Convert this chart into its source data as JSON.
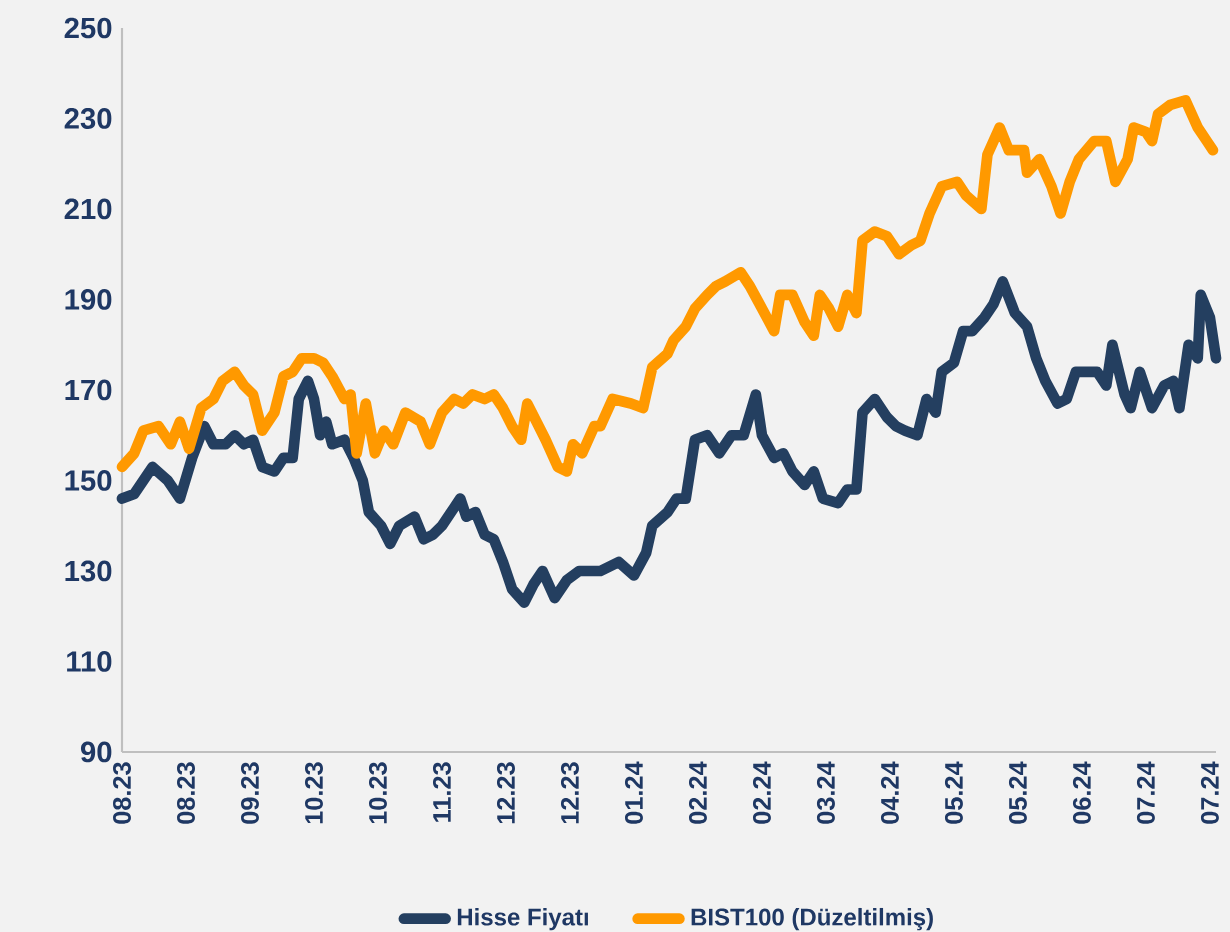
{
  "chart_data": {
    "type": "line",
    "legend": "bottom",
    "xlim": [
      "2023-08-02",
      "2024-07-26"
    ],
    "ylim": [
      90,
      250
    ],
    "yticks": [
      90,
      110,
      130,
      150,
      170,
      190,
      210,
      230,
      250
    ],
    "xticks": [
      {
        "value": "2023-08-02",
        "label": "08.23"
      },
      {
        "value": "2023-08-23",
        "label": "08.23"
      },
      {
        "value": "2023-09-13",
        "label": "09.23"
      },
      {
        "value": "2023-10-04",
        "label": "10.23"
      },
      {
        "value": "2023-10-25",
        "label": "10.23"
      },
      {
        "value": "2023-11-15",
        "label": "11.23"
      },
      {
        "value": "2023-12-06",
        "label": "12.23"
      },
      {
        "value": "2023-12-27",
        "label": "12.23"
      },
      {
        "value": "2024-01-17",
        "label": "01.24"
      },
      {
        "value": "2024-02-07",
        "label": "02.24"
      },
      {
        "value": "2024-02-28",
        "label": "02.24"
      },
      {
        "value": "2024-03-20",
        "label": "03.24"
      },
      {
        "value": "2024-04-10",
        "label": "04.24"
      },
      {
        "value": "2024-05-01",
        "label": "05.24"
      },
      {
        "value": "2024-05-22",
        "label": "05.24"
      },
      {
        "value": "2024-06-12",
        "label": "06.24"
      },
      {
        "value": "2024-07-03",
        "label": "07.24"
      },
      {
        "value": "2024-07-24",
        "label": "07.24"
      }
    ],
    "series": [
      {
        "name": "Hisse Fiyatı",
        "color": "#243f60",
        "x": [
          "2023-08-02",
          "2023-08-06",
          "2023-08-09",
          "2023-08-12",
          "2023-08-17",
          "2023-08-21",
          "2023-08-25",
          "2023-08-29",
          "2023-09-01",
          "2023-09-05",
          "2023-09-08",
          "2023-09-11",
          "2023-09-14",
          "2023-09-17",
          "2023-09-21",
          "2023-09-24",
          "2023-09-27",
          "2023-09-29",
          "2023-10-02",
          "2023-10-04",
          "2023-10-06",
          "2023-10-08",
          "2023-10-10",
          "2023-10-14",
          "2023-10-17",
          "2023-10-20",
          "2023-10-22",
          "2023-10-26",
          "2023-10-29",
          "2023-11-01",
          "2023-11-06",
          "2023-11-09",
          "2023-11-12",
          "2023-11-15",
          "2023-11-19",
          "2023-11-21",
          "2023-11-23",
          "2023-11-26",
          "2023-11-29",
          "2023-12-02",
          "2023-12-05",
          "2023-12-08",
          "2023-12-12",
          "2023-12-15",
          "2023-12-18",
          "2023-12-22",
          "2023-12-26",
          "2023-12-30",
          "2024-01-03",
          "2024-01-06",
          "2024-01-12",
          "2024-01-17",
          "2024-01-21",
          "2024-01-23",
          "2024-01-28",
          "2024-01-31",
          "2024-02-03",
          "2024-02-06",
          "2024-02-10",
          "2024-02-14",
          "2024-02-18",
          "2024-02-22",
          "2024-02-26",
          "2024-02-28",
          "2024-03-03",
          "2024-03-06",
          "2024-03-09",
          "2024-03-13",
          "2024-03-16",
          "2024-03-19",
          "2024-03-24",
          "2024-03-27",
          "2024-03-30",
          "2024-04-01",
          "2024-04-05",
          "2024-04-09",
          "2024-04-12",
          "2024-04-15",
          "2024-04-19",
          "2024-04-22",
          "2024-04-25",
          "2024-04-27",
          "2024-05-01",
          "2024-05-04",
          "2024-05-07",
          "2024-05-11",
          "2024-05-14",
          "2024-05-17",
          "2024-05-21",
          "2024-05-25",
          "2024-05-28",
          "2024-05-31",
          "2024-06-04",
          "2024-06-07",
          "2024-06-10",
          "2024-06-17",
          "2024-06-20",
          "2024-06-22",
          "2024-06-26",
          "2024-06-28",
          "2024-07-01",
          "2024-07-05",
          "2024-07-09",
          "2024-07-12",
          "2024-07-14",
          "2024-07-17",
          "2024-07-20",
          "2024-07-21",
          "2024-07-24",
          "2024-07-26"
        ],
        "values": [
          146,
          147,
          150,
          153,
          150,
          146,
          155,
          162,
          158,
          158,
          160,
          158,
          159,
          153,
          152,
          155,
          155,
          168,
          172,
          168,
          160,
          163,
          158,
          159,
          155,
          150,
          143,
          140,
          136,
          140,
          142,
          137,
          138,
          140,
          144,
          146,
          142,
          143,
          138,
          137,
          132,
          126,
          123,
          127,
          130,
          124,
          128,
          130,
          130,
          130,
          132,
          129,
          134,
          140,
          143,
          146,
          146,
          159,
          160,
          156,
          160,
          160,
          169,
          160,
          155,
          156,
          152,
          149,
          152,
          146,
          145,
          148,
          148,
          165,
          168,
          164,
          162,
          161,
          160,
          168,
          165,
          174,
          176,
          183,
          183,
          186,
          189,
          194,
          187,
          184,
          177,
          172,
          167,
          168,
          174,
          174,
          171,
          180,
          169,
          166,
          174,
          166,
          171,
          172,
          166,
          180,
          177,
          191,
          186,
          177
        ]
      },
      {
        "name": "BIST100 (Düzeltilmiş)",
        "color": "#ff9900",
        "x": [
          "2023-08-02",
          "2023-08-06",
          "2023-08-09",
          "2023-08-14",
          "2023-08-18",
          "2023-08-21",
          "2023-08-24",
          "2023-08-28",
          "2023-09-01",
          "2023-09-04",
          "2023-09-08",
          "2023-09-11",
          "2023-09-14",
          "2023-09-17",
          "2023-09-21",
          "2023-09-24",
          "2023-09-27",
          "2023-09-30",
          "2023-10-04",
          "2023-10-07",
          "2023-10-10",
          "2023-10-14",
          "2023-10-16",
          "2023-10-18",
          "2023-10-21",
          "2023-10-24",
          "2023-10-27",
          "2023-10-30",
          "2023-11-03",
          "2023-11-08",
          "2023-11-11",
          "2023-11-15",
          "2023-11-19",
          "2023-11-22",
          "2023-11-25",
          "2023-11-29",
          "2023-12-02",
          "2023-12-05",
          "2023-12-08",
          "2023-12-11",
          "2023-12-13",
          "2023-12-16",
          "2023-12-19",
          "2023-12-23",
          "2023-12-26",
          "2023-12-28",
          "2023-12-31",
          "2024-01-04",
          "2024-01-06",
          "2024-01-10",
          "2024-01-16",
          "2024-01-20",
          "2024-01-23",
          "2024-01-28",
          "2024-01-30",
          "2024-02-03",
          "2024-02-06",
          "2024-02-10",
          "2024-02-13",
          "2024-02-16",
          "2024-02-21",
          "2024-02-24",
          "2024-02-28",
          "2024-03-03",
          "2024-03-05",
          "2024-03-09",
          "2024-03-13",
          "2024-03-16",
          "2024-03-18",
          "2024-03-21",
          "2024-03-24",
          "2024-03-27",
          "2024-03-30",
          "2024-04-01",
          "2024-04-05",
          "2024-04-09",
          "2024-04-13",
          "2024-04-17",
          "2024-04-20",
          "2024-04-23",
          "2024-04-27",
          "2024-05-02",
          "2024-05-05",
          "2024-05-10",
          "2024-05-12",
          "2024-05-16",
          "2024-05-19",
          "2024-05-24",
          "2024-05-25",
          "2024-05-29",
          "2024-06-02",
          "2024-06-05",
          "2024-06-08",
          "2024-06-11",
          "2024-06-16",
          "2024-06-20",
          "2024-06-23",
          "2024-06-27",
          "2024-06-29",
          "2024-07-03",
          "2024-07-05",
          "2024-07-07",
          "2024-07-11",
          "2024-07-16",
          "2024-07-20",
          "2024-07-23",
          "2024-07-25"
        ],
        "values": [
          153,
          156,
          161,
          162,
          158,
          163,
          157,
          166,
          168,
          172,
          174,
          171,
          169,
          161,
          165,
          173,
          174,
          177,
          177,
          176,
          173,
          168,
          169,
          156,
          167,
          156,
          161,
          158,
          165,
          163,
          158,
          165,
          168,
          167,
          169,
          168,
          169,
          166,
          162,
          159,
          167,
          163,
          159,
          153,
          152,
          158,
          156,
          162,
          162,
          168,
          167,
          166,
          175,
          178,
          181,
          184,
          188,
          191,
          193,
          194,
          196,
          193,
          188,
          183,
          191,
          191,
          185,
          182,
          191,
          188,
          184,
          191,
          187,
          203,
          205,
          204,
          200,
          202,
          203,
          209,
          215,
          216,
          213,
          210,
          222,
          228,
          223,
          223,
          218,
          221,
          215,
          209,
          216,
          221,
          225,
          225,
          216,
          221,
          228,
          227,
          225,
          231,
          233,
          234,
          228,
          225,
          223
        ]
      }
    ]
  }
}
